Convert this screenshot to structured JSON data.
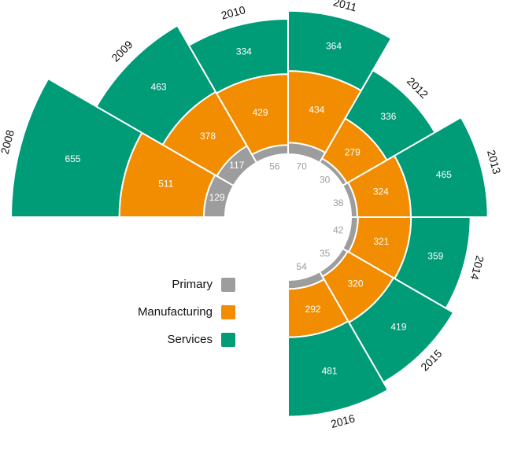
{
  "chart_data": {
    "type": "radial-stacked-bar",
    "categories": [
      "2008",
      "2009",
      "2010",
      "2011",
      "2012",
      "2013",
      "2014",
      "2015",
      "2016"
    ],
    "series": [
      {
        "name": "Primary",
        "color": "#9d9d9d",
        "values": [
          129,
          117,
          56,
          70,
          30,
          38,
          42,
          35,
          54
        ]
      },
      {
        "name": "Manufacturing",
        "color": "#f28c00",
        "values": [
          511,
          378,
          429,
          434,
          279,
          324,
          321,
          320,
          292
        ]
      },
      {
        "name": "Services",
        "color": "#009b77",
        "values": [
          655,
          463,
          334,
          364,
          336,
          465,
          359,
          419,
          481
        ]
      }
    ],
    "legend": "left"
  }
}
